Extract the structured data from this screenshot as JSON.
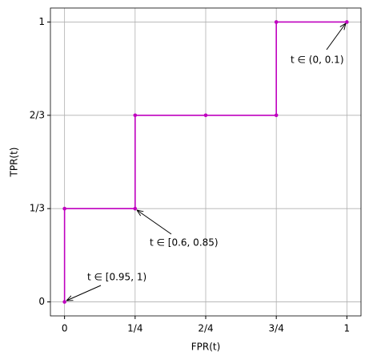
{
  "chart_data": {
    "type": "line",
    "xlabel": "FPR(t)",
    "ylabel": "TPR(t)",
    "x": [
      0,
      0,
      0.25,
      0.25,
      0.5,
      0.75,
      0.75,
      1
    ],
    "series": [
      {
        "color": "#bf00bf",
        "values": [
          0,
          0.3333,
          0.3333,
          0.6667,
          0.6667,
          0.6667,
          1,
          1
        ]
      }
    ],
    "xlim": [
      -0.05,
      1.05
    ],
    "ylim": [
      -0.05,
      1.05
    ],
    "xticks": [
      0,
      {
        "value": 0.25,
        "label": "1/4"
      },
      {
        "value": 0.5,
        "label": "2/4"
      },
      {
        "value": 0.75,
        "label": "3/4"
      },
      1
    ],
    "yticks": [
      0,
      {
        "value": 0.3333,
        "label": "1/3"
      },
      {
        "value": 0.6667,
        "label": "2/3"
      },
      1
    ],
    "grid": true,
    "annotations": [
      "t ∈ (0, 0.1)",
      "t ∈ [0.6, 0.85)",
      "t ∈ [0.95, 1)"
    ]
  }
}
